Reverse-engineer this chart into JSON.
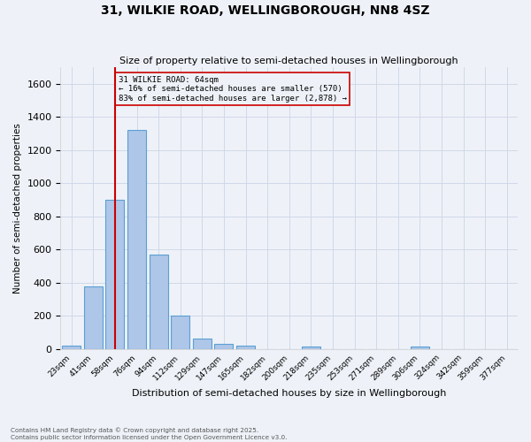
{
  "title": "31, WILKIE ROAD, WELLINGBOROUGH, NN8 4SZ",
  "subtitle": "Size of property relative to semi-detached houses in Wellingborough",
  "xlabel": "Distribution of semi-detached houses by size in Wellingborough",
  "ylabel": "Number of semi-detached properties",
  "categories": [
    "23sqm",
    "41sqm",
    "58sqm",
    "76sqm",
    "94sqm",
    "112sqm",
    "129sqm",
    "147sqm",
    "165sqm",
    "182sqm",
    "200sqm",
    "218sqm",
    "235sqm",
    "253sqm",
    "271sqm",
    "289sqm",
    "306sqm",
    "324sqm",
    "342sqm",
    "359sqm",
    "377sqm"
  ],
  "values": [
    20,
    380,
    900,
    1320,
    570,
    200,
    65,
    30,
    20,
    0,
    0,
    15,
    0,
    0,
    0,
    0,
    15,
    0,
    0,
    0,
    0
  ],
  "bar_color": "#aec6e8",
  "bar_edge_color": "#5a9fd4",
  "property_line_x": 2,
  "pct_smaller": 16,
  "pct_larger": 83,
  "count_smaller": 570,
  "count_larger": 2878,
  "annotation_box_color": "#cc0000",
  "grid_color": "#d0d8e8",
  "bg_color": "#eef2f8",
  "ylim": [
    0,
    1700
  ],
  "footnote1": "Contains HM Land Registry data © Crown copyright and database right 2025.",
  "footnote2": "Contains public sector information licensed under the Open Government Licence v3.0."
}
